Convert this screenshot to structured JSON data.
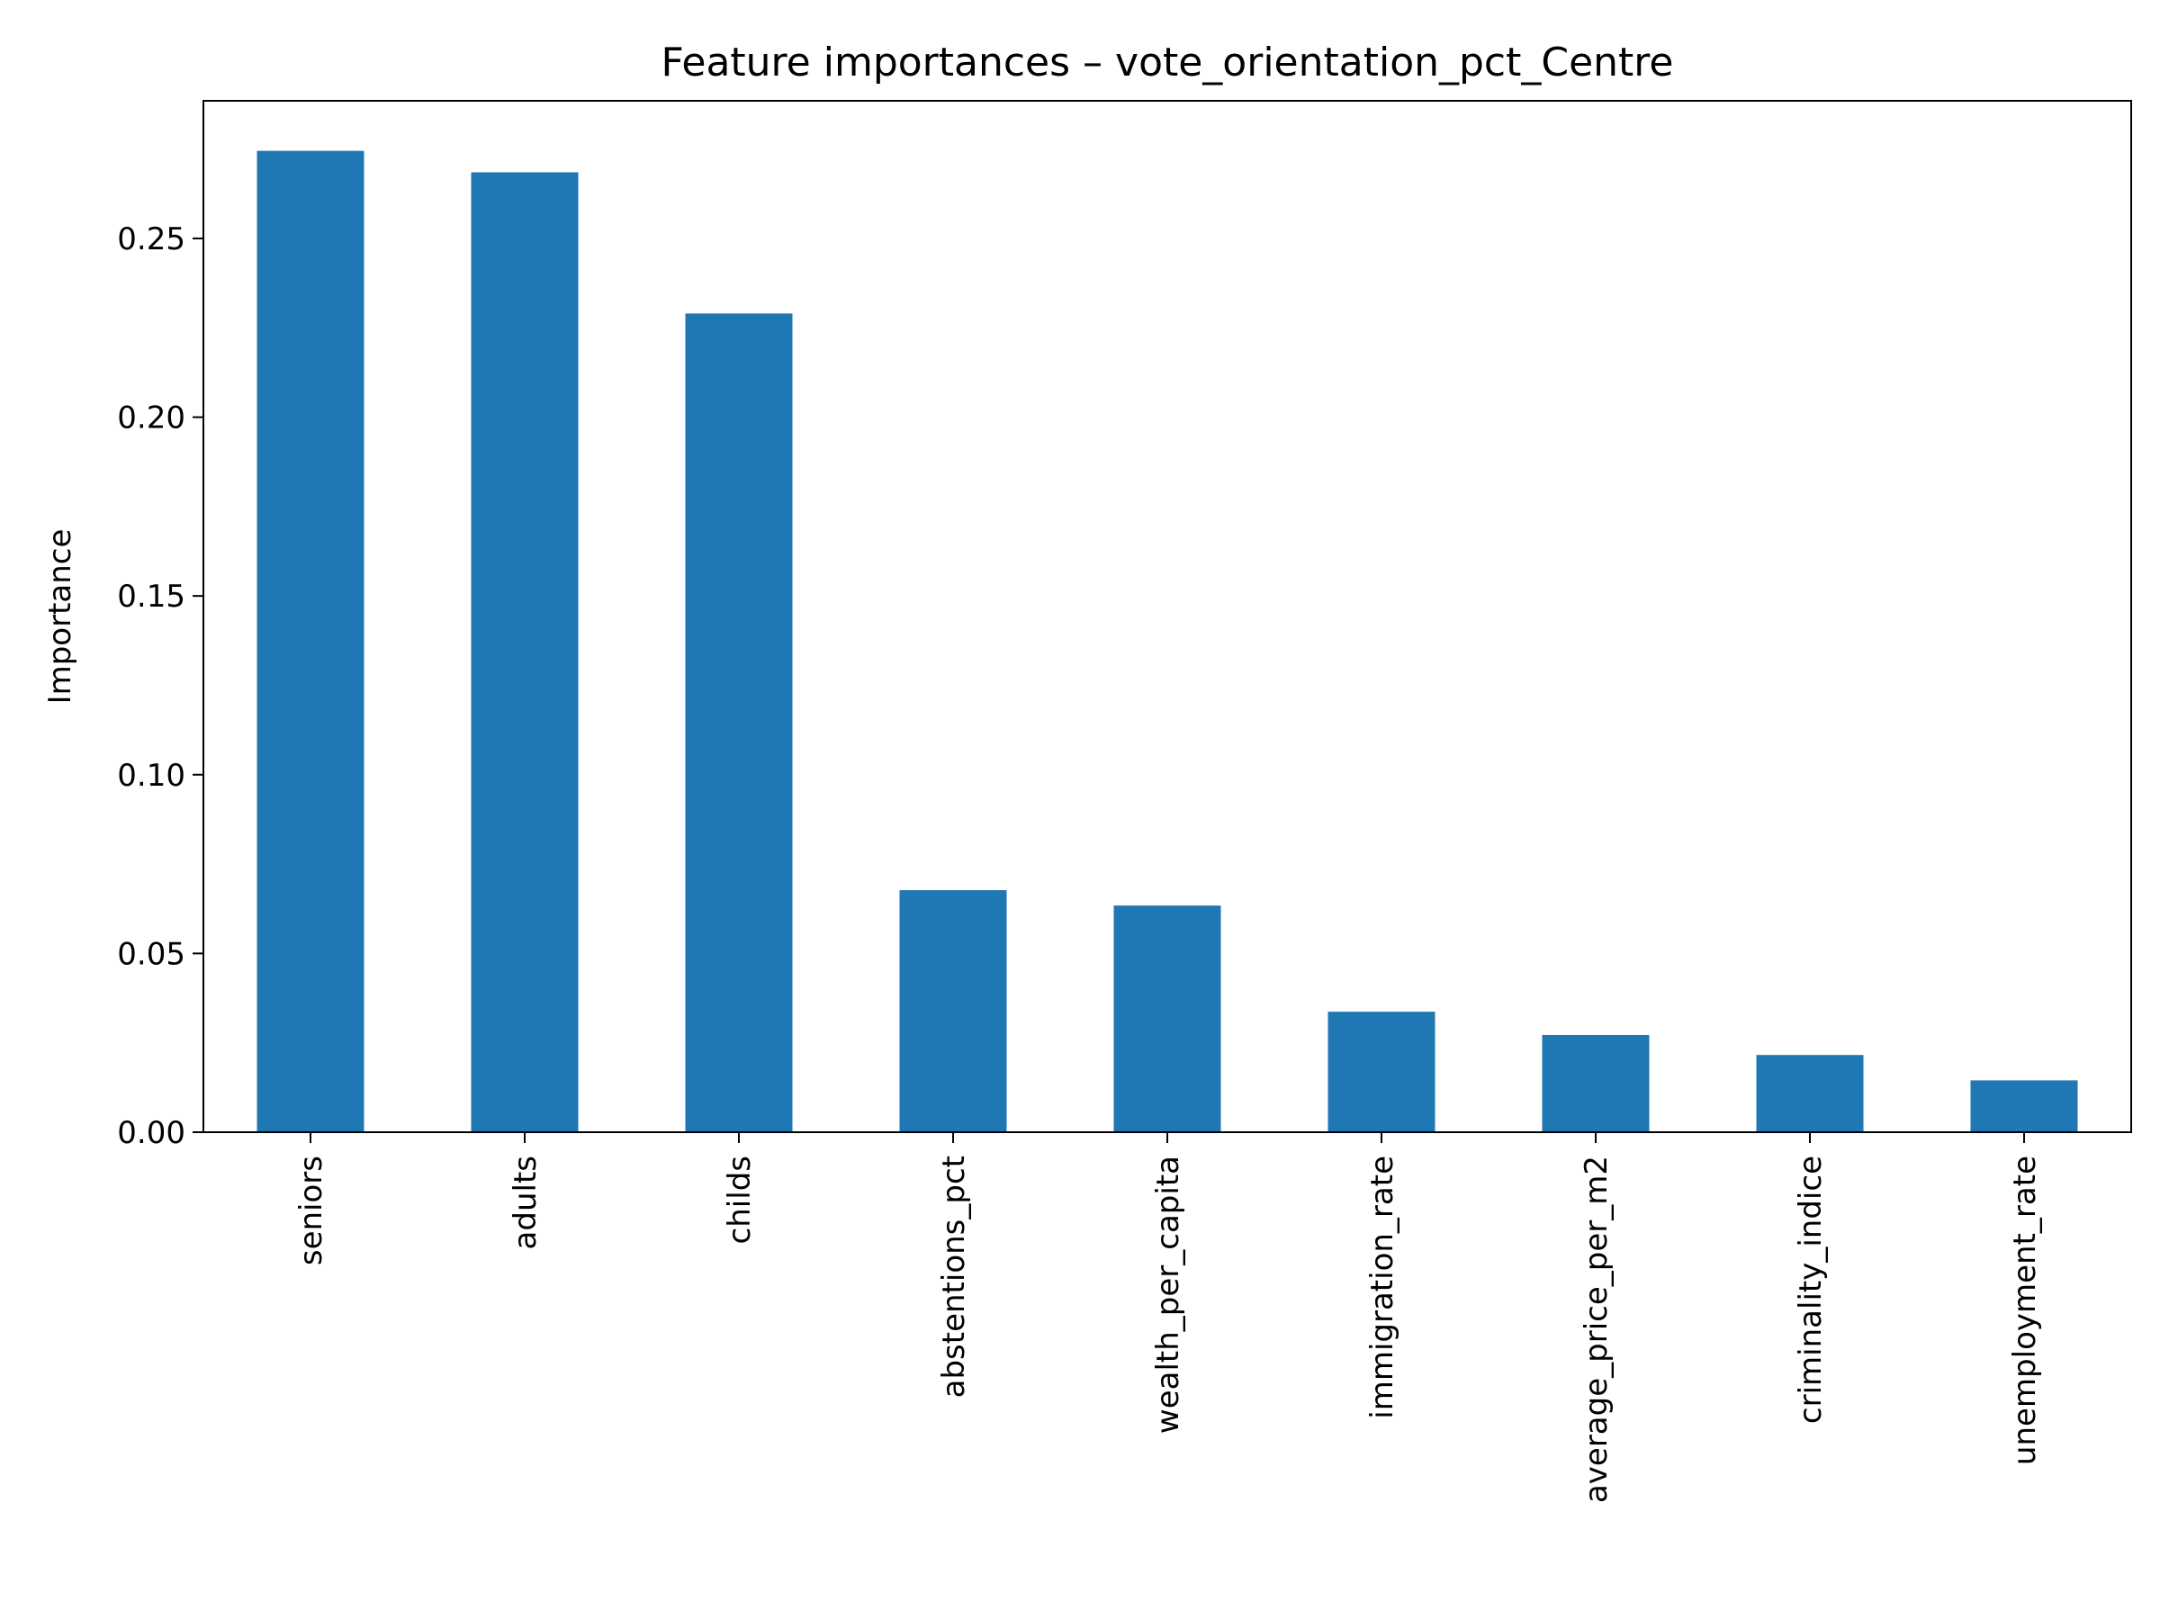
{
  "chart_data": {
    "type": "bar",
    "title": "Feature importances – vote_orientation_pct_Centre",
    "xlabel": "",
    "ylabel": "Importance",
    "categories": [
      "seniors",
      "adults",
      "childs",
      "abstentions_pct",
      "wealth_per_capita",
      "immigration_rate",
      "average_price_per_m2",
      "criminality_indice",
      "unemployment_rate"
    ],
    "values": [
      0.2745,
      0.2685,
      0.229,
      0.0677,
      0.0634,
      0.0337,
      0.0272,
      0.0216,
      0.0145
    ],
    "ylim": [
      0,
      0.2885
    ],
    "yticks": [
      0.0,
      0.05,
      0.1,
      0.15,
      0.2,
      0.25
    ],
    "ytick_labels": [
      "0.00",
      "0.05",
      "0.10",
      "0.15",
      "0.20",
      "0.25"
    ],
    "grid": false,
    "legend": "none",
    "colors": {
      "bar": "#1f77b4",
      "axes": "#000000",
      "background": "#ffffff"
    }
  }
}
